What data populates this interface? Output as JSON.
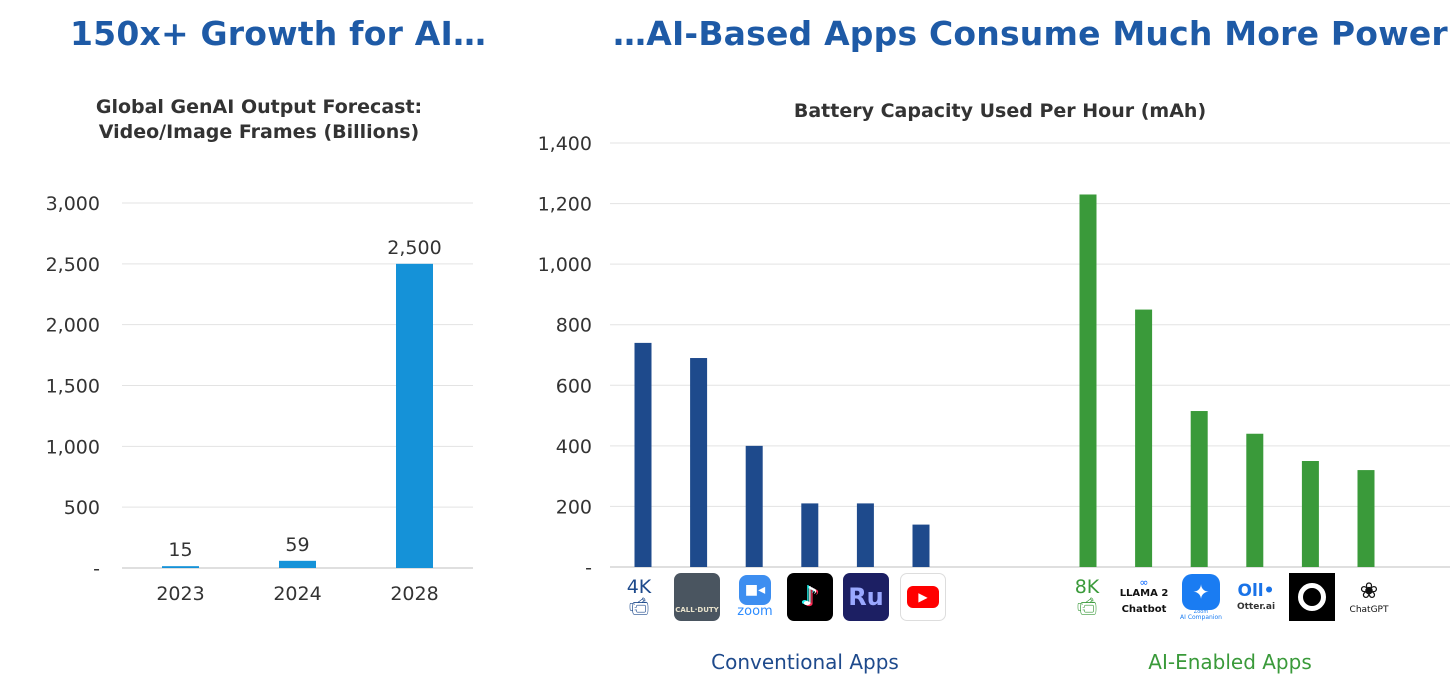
{
  "headlines": {
    "left": "150x+ Growth for AI…",
    "right": "…AI-Based Apps Consume Much More Power"
  },
  "chart_data": [
    {
      "type": "bar",
      "title_lines": [
        "Global GenAI Output Forecast:",
        "Video/Image Frames (Billions)"
      ],
      "categories": [
        "2023",
        "2024",
        "2028"
      ],
      "values": [
        15,
        59,
        2500
      ],
      "data_labels": [
        "15",
        "59",
        "2,500"
      ],
      "ylim": [
        0,
        3000
      ],
      "yticks": [
        0,
        500,
        1000,
        1500,
        2000,
        2500,
        3000
      ],
      "ytick_labels": [
        "-",
        "500",
        "1,000",
        "1,500",
        "2,000",
        "2,500",
        "3,000"
      ],
      "grid": true,
      "color": "#1592d8"
    },
    {
      "type": "bar",
      "title": "Battery Capacity Used Per Hour (mAh)",
      "ylim": [
        0,
        1400
      ],
      "yticks": [
        0,
        200,
        400,
        600,
        800,
        1000,
        1200,
        1400
      ],
      "ytick_labels": [
        "-",
        "200",
        "400",
        "600",
        "800",
        "1,000",
        "1,200",
        "1,400"
      ],
      "grid": true,
      "groups": [
        {
          "name": "Conventional Apps",
          "color": "#1e4a8c",
          "bars": [
            {
              "app": "4K video",
              "value": 740
            },
            {
              "app": "Call of Duty",
              "value": 690
            },
            {
              "app": "Zoom",
              "value": 400
            },
            {
              "app": "TikTok",
              "value": 210
            },
            {
              "app": "Premiere Rush",
              "value": 210
            },
            {
              "app": "YouTube",
              "value": 140
            }
          ]
        },
        {
          "name": "AI-Enabled Apps",
          "color": "#3a9a3a",
          "bars": [
            {
              "app": "8K video",
              "value": 1230
            },
            {
              "app": "Llama 2 Chatbot",
              "value": 850
            },
            {
              "app": "Zoom AI Companion",
              "value": 515
            },
            {
              "app": "Otter.ai",
              "value": 440
            },
            {
              "app": "Dark circle app",
              "value": 350
            },
            {
              "app": "ChatGPT",
              "value": 320
            }
          ]
        }
      ]
    }
  ],
  "icons": {
    "k4": {
      "text": "4K",
      "icon": "video-camera-icon"
    },
    "cod": {
      "text": "CALL·DUTY",
      "icon": "call-of-duty-icon"
    },
    "zoom": {
      "text": "zoom",
      "icon": "zoom-camera-icon"
    },
    "tiktok": {
      "icon": "tiktok-note-icon"
    },
    "ru": {
      "text": "Ru",
      "icon": "premiere-rush-icon"
    },
    "yt": {
      "icon": "youtube-play-icon"
    },
    "k8": {
      "text": "8K",
      "icon": "video-camera-icon"
    },
    "llama": {
      "line1": "∞",
      "line2": "LLAMA 2",
      "line3": "Chatbot"
    },
    "zoomai": {
      "line1": "Zoom",
      "line2": "AI Companion",
      "icon": "sparkle-icon"
    },
    "otter": {
      "mark": "Oll•",
      "text": "Otter.ai"
    },
    "circle": {
      "icon": "ring-icon"
    },
    "chatgpt": {
      "text": "ChatGPT",
      "icon": "openai-knot-icon"
    }
  },
  "colors": {
    "headline": "#1e5aa6",
    "conventional": "#1e4a8c",
    "ai": "#3a9a3a",
    "left_bar": "#1592d8"
  }
}
